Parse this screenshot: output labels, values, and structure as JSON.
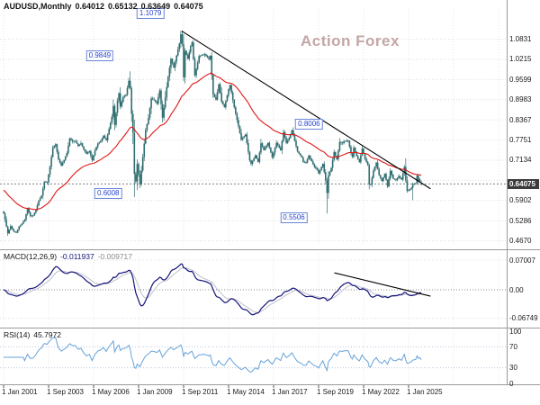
{
  "window": {
    "header": {
      "symbol": "AUDUSD,Monthly",
      "open": "0.64012",
      "high": "0.65132",
      "low": "0.63649",
      "close": "0.64075"
    },
    "watermark": "Action Forex"
  },
  "indicators": {
    "macd": {
      "label": "MACD(12,26,9)",
      "main_value": "-0.011937",
      "signal_value": "-0.009717",
      "axis_labels": [
        "0.07007",
        "0.00",
        "-0.06749"
      ],
      "range": [
        -0.085,
        0.085
      ]
    },
    "rsi": {
      "label": "RSI(14)",
      "value": "45.7972",
      "axis_labels": [
        "100",
        "70",
        "30",
        "0"
      ],
      "levels": [
        70,
        30
      ],
      "range": [
        0,
        100
      ]
    }
  },
  "chart_data": {
    "type": "candlestick",
    "symbol": "AUDUSD",
    "timeframe": "Monthly",
    "current_ohlc": {
      "open": 0.64012,
      "high": 0.65132,
      "low": 0.63649,
      "close": 0.64075
    },
    "x_axis": {
      "start_year": 2001.0,
      "months": 298,
      "tick_interval_months": 32,
      "tick_labels": [
        "1 Jan 2001",
        "1 Sep 2003",
        "1 May 2006",
        "1 Jan 2009",
        "1 Sep 2011",
        "1 May 2014",
        "1 Jan 2017",
        "1 Sep 2019",
        "1 May 2022",
        "1 Jan 2025"
      ]
    },
    "y_axis": {
      "min": 0.455,
      "max": 1.175,
      "tick_labels": [
        "1.0831",
        "1.0215",
        "0.9599",
        "0.8983",
        "0.8367",
        "0.7751",
        "0.7134",
        "0.5902",
        "0.5286",
        "0.4670"
      ],
      "tick_values": [
        1.0831,
        1.0215,
        0.9599,
        0.8983,
        0.8367,
        0.7751,
        0.7134,
        0.6518,
        0.5902,
        0.5286,
        0.467
      ],
      "current_price": 0.64075,
      "current_price_label": "0.64075"
    },
    "price_labels": [
      {
        "text": "1.1079",
        "t": 2009.7,
        "price": 1.161
      },
      {
        "text": "0.9849",
        "t": 2006.7,
        "price": 1.032
      },
      {
        "text": "0.8006",
        "t": 2019.1,
        "price": 0.823
      },
      {
        "text": "0.6008",
        "t": 2007.2,
        "price": 0.612
      },
      {
        "text": "0.5506",
        "t": 2018.2,
        "price": 0.537
      }
    ],
    "trendlines": {
      "price": {
        "from": [
          2011.55,
          1.1079
        ],
        "to": [
          2026.3,
          0.626
        ]
      },
      "macd": {
        "from": [
          2020.6,
          0.04
        ],
        "to": [
          2026.3,
          -0.015
        ]
      }
    },
    "moving_average": {
      "color": "#e01616",
      "period_estimate": 45,
      "seed": 0.625
    },
    "pins": [
      [
        2008.5,
        "h",
        0.9849
      ],
      [
        2008.75,
        "l",
        0.6008
      ],
      [
        2011.5,
        "h",
        1.1079
      ],
      [
        2020.167,
        "l",
        0.5506
      ],
      [
        2025.25,
        "l",
        0.5915
      ]
    ],
    "anchors": [
      [
        2001.0,
        0.551
      ],
      [
        2001.083,
        0.532
      ],
      [
        2001.25,
        0.49
      ],
      [
        2001.417,
        0.512
      ],
      [
        2001.583,
        0.497
      ],
      [
        2001.75,
        0.492
      ],
      [
        2001.917,
        0.511
      ],
      [
        2002.083,
        0.519
      ],
      [
        2002.25,
        0.532
      ],
      [
        2002.417,
        0.565
      ],
      [
        2002.583,
        0.543
      ],
      [
        2002.75,
        0.545
      ],
      [
        2002.917,
        0.562
      ],
      [
        2003.083,
        0.59
      ],
      [
        2003.25,
        0.605
      ],
      [
        2003.417,
        0.648
      ],
      [
        2003.583,
        0.645
      ],
      [
        2003.75,
        0.694
      ],
      [
        2003.917,
        0.752
      ],
      [
        2004.083,
        0.762
      ],
      [
        2004.25,
        0.716
      ],
      [
        2004.417,
        0.697
      ],
      [
        2004.583,
        0.714
      ],
      [
        2004.75,
        0.735
      ],
      [
        2004.917,
        0.78
      ],
      [
        2005.083,
        0.771
      ],
      [
        2005.25,
        0.772
      ],
      [
        2005.417,
        0.757
      ],
      [
        2005.583,
        0.765
      ],
      [
        2005.75,
        0.746
      ],
      [
        2005.917,
        0.733
      ],
      [
        2006.083,
        0.741
      ],
      [
        2006.25,
        0.713
      ],
      [
        2006.417,
        0.743
      ],
      [
        2006.583,
        0.764
      ],
      [
        2006.75,
        0.771
      ],
      [
        2006.917,
        0.788
      ],
      [
        2007.083,
        0.774
      ],
      [
        2007.25,
        0.809
      ],
      [
        2007.417,
        0.846
      ],
      [
        2007.5,
        0.879
      ],
      [
        2007.583,
        0.821
      ],
      [
        2007.75,
        0.895
      ],
      [
        2007.833,
        0.918
      ],
      [
        2007.917,
        0.877
      ],
      [
        2008.083,
        0.906
      ],
      [
        2008.25,
        0.913
      ],
      [
        2008.417,
        0.956
      ],
      [
        2008.5,
        0.933
      ],
      [
        2008.583,
        0.855
      ],
      [
        2008.667,
        0.797
      ],
      [
        2008.75,
        0.671
      ],
      [
        2008.833,
        0.648
      ],
      [
        2008.917,
        0.702
      ],
      [
        2009.083,
        0.64
      ],
      [
        2009.25,
        0.723
      ],
      [
        2009.417,
        0.805
      ],
      [
        2009.583,
        0.842
      ],
      [
        2009.75,
        0.902
      ],
      [
        2009.917,
        0.897
      ],
      [
        2010.083,
        0.886
      ],
      [
        2010.25,
        0.926
      ],
      [
        2010.417,
        0.843
      ],
      [
        2010.583,
        0.905
      ],
      [
        2010.75,
        0.968
      ],
      [
        2010.917,
        1.023
      ],
      [
        2011.083,
        0.996
      ],
      [
        2011.25,
        1.033
      ],
      [
        2011.417,
        1.07
      ],
      [
        2011.5,
        1.098
      ],
      [
        2011.583,
        1.068
      ],
      [
        2011.667,
        0.966
      ],
      [
        2011.75,
        1.047
      ],
      [
        2011.917,
        1.023
      ],
      [
        2012.083,
        1.062
      ],
      [
        2012.167,
        1.073
      ],
      [
        2012.333,
        0.972
      ],
      [
        2012.583,
        1.031
      ],
      [
        2012.917,
        1.037
      ],
      [
        2013.167,
        1.022
      ],
      [
        2013.25,
        1.032
      ],
      [
        2013.417,
        0.914
      ],
      [
        2013.583,
        0.898
      ],
      [
        2013.75,
        0.945
      ],
      [
        2013.917,
        0.892
      ],
      [
        2014.083,
        0.875
      ],
      [
        2014.333,
        0.93
      ],
      [
        2014.417,
        0.943
      ],
      [
        2014.667,
        0.875
      ],
      [
        2014.917,
        0.817
      ],
      [
        2015.083,
        0.776
      ],
      [
        2015.333,
        0.792
      ],
      [
        2015.583,
        0.713
      ],
      [
        2015.667,
        0.702
      ],
      [
        2015.917,
        0.728
      ],
      [
        2016.083,
        0.708
      ],
      [
        2016.25,
        0.765
      ],
      [
        2016.417,
        0.744
      ],
      [
        2016.667,
        0.766
      ],
      [
        2016.917,
        0.722
      ],
      [
        2017.167,
        0.766
      ],
      [
        2017.417,
        0.744
      ],
      [
        2017.583,
        0.799
      ],
      [
        2017.75,
        0.766
      ],
      [
        2017.917,
        0.781
      ],
      [
        2018.083,
        0.805
      ],
      [
        2018.417,
        0.74
      ],
      [
        2018.667,
        0.722
      ],
      [
        2018.75,
        0.708
      ],
      [
        2018.917,
        0.705
      ],
      [
        2019.083,
        0.727
      ],
      [
        2019.417,
        0.693
      ],
      [
        2019.583,
        0.684
      ],
      [
        2019.667,
        0.673
      ],
      [
        2019.917,
        0.702
      ],
      [
        2020.083,
        0.6515
      ],
      [
        2020.167,
        0.613
      ],
      [
        2020.25,
        0.666
      ],
      [
        2020.417,
        0.69
      ],
      [
        2020.583,
        0.738
      ],
      [
        2020.75,
        0.716
      ],
      [
        2020.917,
        0.769
      ],
      [
        2021.083,
        0.765
      ],
      [
        2021.167,
        0.771
      ],
      [
        2021.417,
        0.773
      ],
      [
        2021.583,
        0.735
      ],
      [
        2021.667,
        0.723
      ],
      [
        2021.75,
        0.752
      ],
      [
        2021.917,
        0.726
      ],
      [
        2022.083,
        0.707
      ],
      [
        2022.25,
        0.749
      ],
      [
        2022.417,
        0.718
      ],
      [
        2022.583,
        0.699
      ],
      [
        2022.667,
        0.64
      ],
      [
        2022.75,
        0.639
      ],
      [
        2022.917,
        0.681
      ],
      [
        2023.083,
        0.706
      ],
      [
        2023.25,
        0.668
      ],
      [
        2023.417,
        0.65
      ],
      [
        2023.583,
        0.672
      ],
      [
        2023.75,
        0.633
      ],
      [
        2023.917,
        0.681
      ],
      [
        2024.083,
        0.657
      ],
      [
        2024.25,
        0.652
      ],
      [
        2024.417,
        0.665
      ],
      [
        2024.583,
        0.654
      ],
      [
        2024.75,
        0.693
      ],
      [
        2024.833,
        0.651
      ],
      [
        2024.917,
        0.619
      ],
      [
        2025.0,
        0.622
      ],
      [
        2025.167,
        0.629
      ],
      [
        2025.25,
        0.64
      ],
      [
        2025.417,
        0.643
      ],
      [
        2025.5,
        0.666
      ],
      [
        2025.583,
        0.65
      ],
      [
        2025.667,
        0.655
      ],
      [
        2025.75,
        0.64075
      ]
    ],
    "colors": {
      "candle": "#2f6d70",
      "moving_average": "#e01616",
      "trendline": "#000000",
      "macd_main": "#14147a",
      "macd_signal": "#c0c0cc",
      "rsi_line": "#66a3d9",
      "grid": "#dcdcdc",
      "level_label_blue": "#2742cc",
      "watermark": "#c4a6a6",
      "price_tag_bg": "#3c3c3c"
    }
  }
}
